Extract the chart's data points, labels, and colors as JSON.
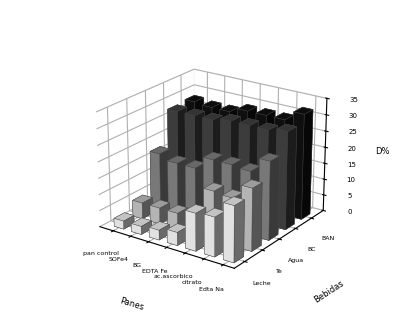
{
  "panes": [
    "pan control",
    "SOFe4",
    "BG",
    "EDTA Fe",
    "ac.ascorbico",
    "citrato",
    "Edta Na"
  ],
  "bebidas": [
    "Leche",
    "Te",
    "Agua",
    "BC",
    "BAN"
  ],
  "xlabel": "Panes",
  "ylabel": "Bebidas",
  "zlabel": "D%",
  "zlim": [
    0,
    35
  ],
  "zticks": [
    0,
    5,
    10,
    15,
    20,
    25,
    30,
    35
  ],
  "values": {
    "Leche": [
      2.5,
      2.5,
      3.0,
      4.0,
      11.5,
      12.0,
      17.0
    ],
    "Te": [
      5.0,
      5.0,
      5.0,
      5.5,
      15.0,
      14.5,
      19.0
    ],
    "Agua": [
      17.5,
      16.0,
      16.0,
      20.0,
      20.0,
      19.5,
      24.0
    ],
    "BC": [
      28.0,
      28.0,
      28.0,
      29.0,
      29.0,
      29.0,
      30.0
    ],
    "BAN": [
      28.5,
      28.0,
      28.0,
      29.5,
      29.5,
      29.5,
      32.5
    ]
  },
  "bebida_colors": {
    "Leche": "#ffffff",
    "Te": "#cccccc",
    "Agua": "#888888",
    "BC": "#444444",
    "BAN": "#111111"
  },
  "bar_edgecolor": "#444444",
  "elev": 22,
  "azim": -55,
  "bar_width": 0.55,
  "bar_depth": 0.55
}
